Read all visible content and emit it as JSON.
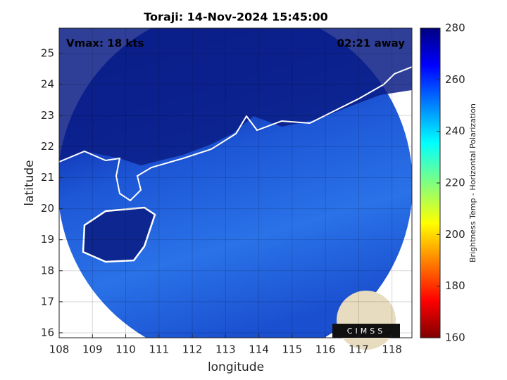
{
  "chart_data": {
    "type": "map",
    "title": "Toraji: 14-Nov-2024 15:45:00",
    "annotations": [
      "Vmax: 18 kts",
      "02:21 away"
    ],
    "xlabel": "longitude",
    "ylabel": "latitude",
    "xlim": [
      108,
      118.6
    ],
    "ylim": [
      15.84,
      25.82
    ],
    "xticks": [
      108,
      109,
      110,
      111,
      112,
      113,
      114,
      115,
      116,
      117,
      118
    ],
    "yticks": [
      16,
      17,
      18,
      19,
      20,
      21,
      22,
      23,
      24,
      25
    ],
    "grid": true,
    "colorbar": {
      "label": "Brightness Temp - Horizontal Polarization",
      "lim": [
        160,
        280
      ],
      "ticks": [
        160,
        180,
        200,
        220,
        240,
        260,
        280
      ]
    },
    "logo_text": "CIMSS"
  }
}
